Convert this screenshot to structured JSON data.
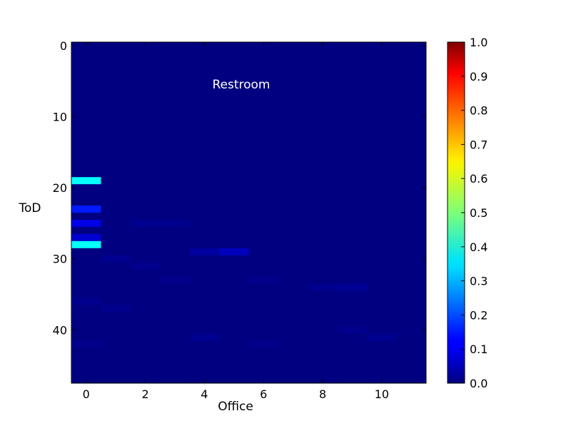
{
  "chart_data": {
    "type": "heatmap",
    "title": "",
    "annotation": "Restroom",
    "xlabel": "Office",
    "ylabel": "ToD",
    "x_ticks": [
      0,
      2,
      4,
      6,
      8,
      10
    ],
    "y_ticks": [
      0,
      10,
      20,
      30,
      40
    ],
    "x_range": [
      -0.5,
      11.5
    ],
    "y_range": [
      -0.5,
      47.5
    ],
    "y_axis_inverted": true,
    "n_columns": 12,
    "n_rows": 48,
    "colormap": "jet",
    "clim": [
      0,
      1
    ],
    "colorbar_ticks": [
      "0.0",
      "0.1",
      "0.2",
      "0.3",
      "0.4",
      "0.5",
      "0.6",
      "0.7",
      "0.8",
      "0.9",
      "1.0"
    ],
    "background_value": 0.0,
    "cells": [
      {
        "x": 0,
        "y": 19,
        "value": 0.38
      },
      {
        "x": 0,
        "y": 23,
        "value": 0.15
      },
      {
        "x": 0,
        "y": 25,
        "value": 0.1
      },
      {
        "x": 0,
        "y": 27,
        "value": 0.08
      },
      {
        "x": 0,
        "y": 28,
        "value": 0.38
      },
      {
        "x": 4,
        "y": 29,
        "value": 0.03
      },
      {
        "x": 5,
        "y": 29,
        "value": 0.06
      },
      {
        "x": 2,
        "y": 25,
        "value": 0.015
      },
      {
        "x": 3,
        "y": 25,
        "value": 0.015
      },
      {
        "x": 1,
        "y": 30,
        "value": 0.015
      },
      {
        "x": 2,
        "y": 31,
        "value": 0.012
      },
      {
        "x": 3,
        "y": 33,
        "value": 0.012
      },
      {
        "x": 6,
        "y": 33,
        "value": 0.012
      },
      {
        "x": 8,
        "y": 34,
        "value": 0.015
      },
      {
        "x": 9,
        "y": 34,
        "value": 0.02
      },
      {
        "x": 0,
        "y": 36,
        "value": 0.012
      },
      {
        "x": 1,
        "y": 37,
        "value": 0.012
      },
      {
        "x": 4,
        "y": 41,
        "value": 0.015
      },
      {
        "x": 9,
        "y": 40,
        "value": 0.012
      },
      {
        "x": 10,
        "y": 41,
        "value": 0.015
      },
      {
        "x": 0,
        "y": 42,
        "value": 0.012
      },
      {
        "x": 6,
        "y": 42,
        "value": 0.012
      }
    ]
  }
}
